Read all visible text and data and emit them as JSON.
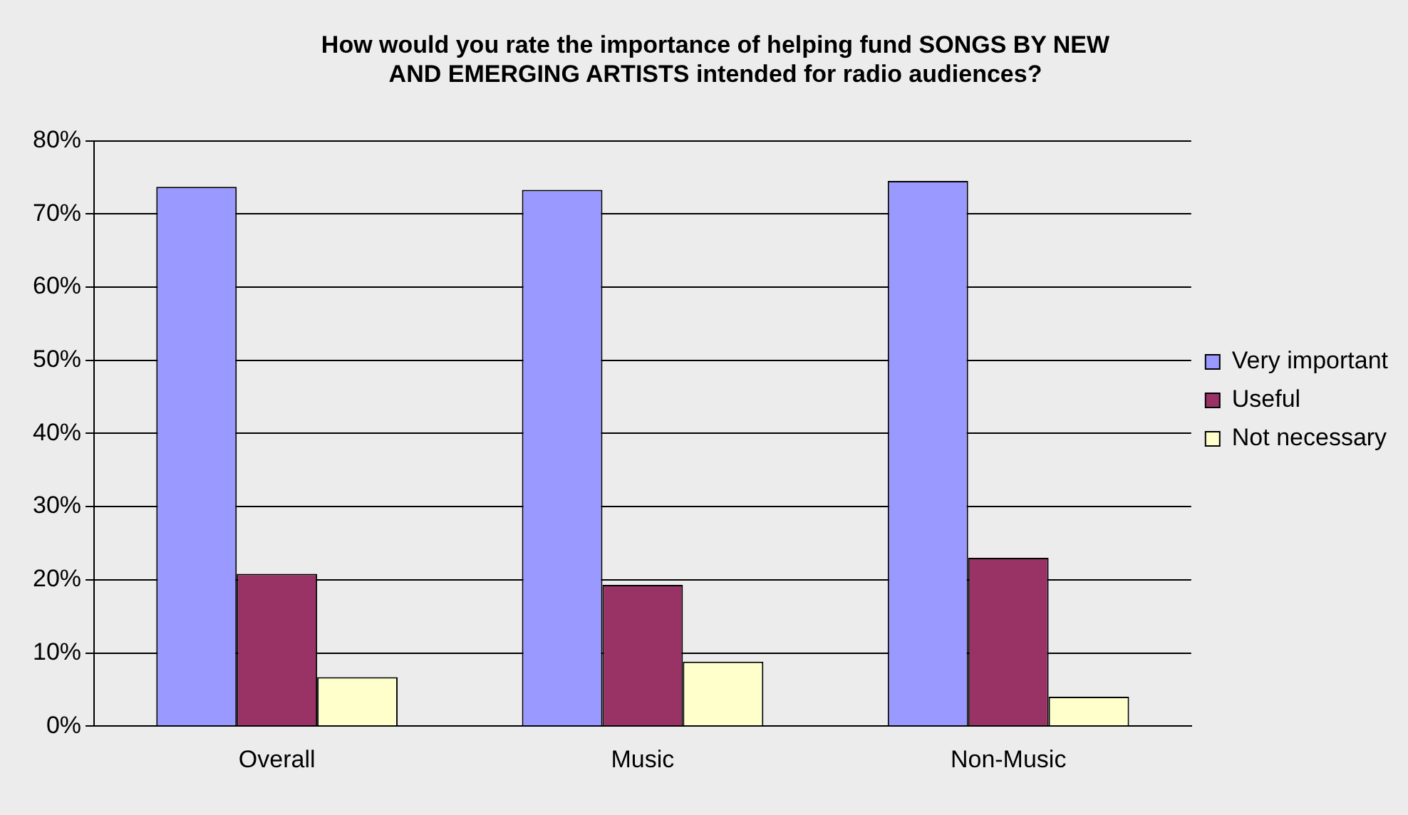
{
  "chart_data": {
    "type": "bar",
    "title": "How would you rate the importance of helping fund SONGS BY NEW AND EMERGING ARTISTS intended for radio audiences?",
    "categories": [
      "Overall",
      "Music",
      "Non-Music"
    ],
    "series": [
      {
        "name": "Very important",
        "color": "#9999ff",
        "values": [
          73.7,
          73.3,
          74.5
        ]
      },
      {
        "name": "Useful",
        "color": "#993366",
        "values": [
          20.8,
          19.3,
          23.0
        ]
      },
      {
        "name": "Not necessary",
        "color": "#ffffcc",
        "values": [
          6.7,
          8.8,
          4.0
        ]
      }
    ],
    "ylim": [
      0,
      80
    ],
    "yticks": [
      {
        "value": 0,
        "label": "0%"
      },
      {
        "value": 10,
        "label": "10%"
      },
      {
        "value": 20,
        "label": "20%"
      },
      {
        "value": 30,
        "label": "30%"
      },
      {
        "value": 40,
        "label": "40%"
      },
      {
        "value": 50,
        "label": "50%"
      },
      {
        "value": 60,
        "label": "60%"
      },
      {
        "value": 70,
        "label": "70%"
      },
      {
        "value": 80,
        "label": "80%"
      }
    ],
    "grid": "y",
    "legend": "right"
  }
}
